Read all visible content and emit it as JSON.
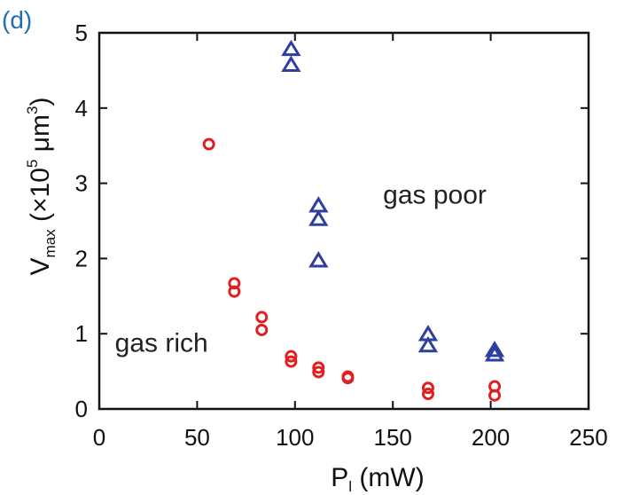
{
  "panel_label": "(d)",
  "colors": {
    "panel_label": "#1f6fb5",
    "gas_rich": "#e02020",
    "gas_poor": "#2e3f9e",
    "axes": "#111111"
  },
  "chart_data": {
    "type": "scatter",
    "title": "",
    "xlabel": {
      "main": "P",
      "sub": "l",
      "rest": " (mW)"
    },
    "ylabel": {
      "main": "V",
      "sub": "max",
      "rest_prefix": " (×10",
      "sup1": "5",
      "mid": " μm",
      "sup2": "3",
      "rest_suffix": ")"
    },
    "xlim": [
      0,
      250
    ],
    "ylim": [
      0,
      5
    ],
    "xticks": [
      "0",
      "50",
      "100",
      "150",
      "200",
      "250"
    ],
    "yticks": [
      "0",
      "1",
      "2",
      "3",
      "4",
      "5"
    ],
    "grid": false,
    "series": [
      {
        "marker": "circle",
        "color": "#e02020",
        "points": [
          [
            56,
            3.52
          ],
          [
            69,
            1.67
          ],
          [
            69,
            1.56
          ],
          [
            83,
            1.22
          ],
          [
            83,
            1.05
          ],
          [
            98,
            0.7
          ],
          [
            98,
            0.63
          ],
          [
            112,
            0.55
          ],
          [
            112,
            0.49
          ],
          [
            127,
            0.43
          ],
          [
            127,
            0.41
          ],
          [
            168,
            0.28
          ],
          [
            168,
            0.2
          ],
          [
            202,
            0.3
          ],
          [
            202,
            0.18
          ]
        ]
      },
      {
        "marker": "triangle",
        "color": "#2e3f9e",
        "points": [
          [
            98,
            4.78
          ],
          [
            98,
            4.57
          ],
          [
            112,
            2.7
          ],
          [
            112,
            2.52
          ],
          [
            112,
            1.97
          ],
          [
            168,
            0.99
          ],
          [
            168,
            0.84
          ],
          [
            202,
            0.78
          ],
          [
            202,
            0.72
          ]
        ]
      }
    ],
    "annotations": [
      {
        "text": "gas poor",
        "x": 145,
        "y": 2.85
      },
      {
        "text": "gas rich",
        "x": 8,
        "y": 0.88
      }
    ]
  }
}
